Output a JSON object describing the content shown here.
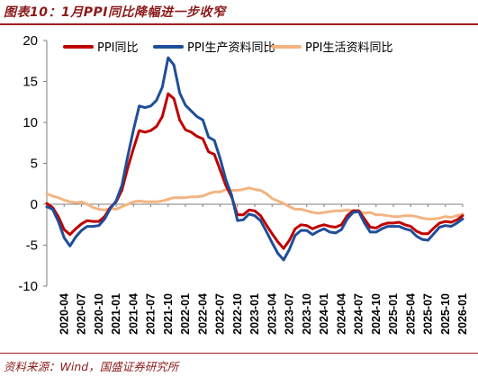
{
  "figure": {
    "title": "图表10：1月PPI同比降幅进一步收窄",
    "source": "资料来源：Wind，国盛证券研究所"
  },
  "chart_data": {
    "type": "line",
    "ylim": [
      -10,
      20
    ],
    "yticks": [
      -10,
      -5,
      0,
      5,
      10,
      15,
      20
    ],
    "grid": false,
    "legend_position": "top",
    "x_tick_labels": [
      "2020-04",
      "2020-07",
      "2020-10",
      "2021-01",
      "2021-04",
      "2021-07",
      "2021-10",
      "2022-01",
      "2022-04",
      "2022-07",
      "2022-10",
      "2023-01",
      "2023-04",
      "2023-07",
      "2023-10",
      "2024-01",
      "2024-04",
      "2024-07",
      "2024-10",
      "2025-01",
      "2025-04",
      "2025-07",
      "2025-10",
      "2026-01"
    ],
    "x": [
      "2020-01",
      "2020-02",
      "2020-03",
      "2020-04",
      "2020-05",
      "2020-06",
      "2020-07",
      "2020-08",
      "2020-09",
      "2020-10",
      "2020-11",
      "2020-12",
      "2021-01",
      "2021-02",
      "2021-03",
      "2021-04",
      "2021-05",
      "2021-06",
      "2021-07",
      "2021-08",
      "2021-09",
      "2021-10",
      "2021-11",
      "2021-12",
      "2022-01",
      "2022-02",
      "2022-03",
      "2022-04",
      "2022-05",
      "2022-06",
      "2022-07",
      "2022-08",
      "2022-09",
      "2022-10",
      "2022-11",
      "2022-12",
      "2023-01",
      "2023-02",
      "2023-03",
      "2023-04",
      "2023-05",
      "2023-06",
      "2023-07",
      "2023-08",
      "2023-09",
      "2023-10",
      "2023-11",
      "2023-12",
      "2024-01",
      "2024-02",
      "2024-03",
      "2024-04",
      "2024-05",
      "2024-06",
      "2024-07",
      "2024-08",
      "2024-09",
      "2024-10",
      "2024-11",
      "2024-12",
      "2025-01",
      "2025-02",
      "2025-03",
      "2025-04",
      "2025-05",
      "2025-06",
      "2025-07",
      "2025-08",
      "2025-09",
      "2025-10",
      "2025-11",
      "2025-12",
      "2026-01"
    ],
    "series": [
      {
        "name": "PPI同比",
        "color": "#c00000",
        "values": [
          0.1,
          -0.4,
          -1.5,
          -3.1,
          -3.7,
          -3.0,
          -2.4,
          -2.0,
          -2.1,
          -2.1,
          -1.5,
          -0.4,
          0.3,
          1.7,
          4.4,
          6.8,
          9.0,
          8.8,
          9.0,
          9.5,
          10.7,
          13.5,
          12.9,
          10.3,
          9.1,
          8.8,
          8.3,
          8.0,
          6.4,
          6.1,
          4.2,
          2.3,
          0.9,
          -1.3,
          -1.3,
          -0.7,
          -0.8,
          -1.4,
          -2.5,
          -3.6,
          -4.6,
          -5.4,
          -4.4,
          -3.0,
          -2.5,
          -2.6,
          -3.0,
          -2.7,
          -2.5,
          -2.7,
          -2.8,
          -2.5,
          -1.4,
          -0.8,
          -0.8,
          -1.8,
          -2.8,
          -2.9,
          -2.5,
          -2.3,
          -2.3,
          -2.2,
          -2.5,
          -2.7,
          -3.3,
          -3.6,
          -3.6,
          -2.9,
          -2.3,
          -2.1,
          -2.2,
          -1.9,
          -1.4
        ]
      },
      {
        "name": "PPI生产资料同比",
        "color": "#1f4e99",
        "values": [
          -0.3,
          -0.6,
          -2.1,
          -4.1,
          -5.1,
          -4.0,
          -3.2,
          -2.7,
          -2.7,
          -2.6,
          -1.8,
          -0.5,
          0.4,
          2.3,
          5.8,
          9.1,
          12.0,
          11.8,
          12.0,
          12.7,
          14.3,
          17.9,
          17.0,
          13.6,
          12.1,
          11.4,
          10.7,
          10.3,
          8.2,
          7.8,
          5.6,
          3.0,
          1.1,
          -2.0,
          -1.9,
          -1.2,
          -1.4,
          -2.0,
          -3.3,
          -4.7,
          -6.0,
          -6.8,
          -5.5,
          -3.8,
          -3.2,
          -3.2,
          -3.7,
          -3.3,
          -3.0,
          -3.4,
          -3.5,
          -3.1,
          -1.8,
          -1.0,
          -0.9,
          -2.3,
          -3.4,
          -3.4,
          -3.0,
          -2.7,
          -2.7,
          -2.7,
          -3.0,
          -3.2,
          -3.9,
          -4.3,
          -4.4,
          -3.6,
          -2.8,
          -2.6,
          -2.7,
          -2.3,
          -1.8
        ]
      },
      {
        "name": "PPI生活资料同比",
        "color": "#f3b481",
        "values": [
          1.3,
          1.0,
          0.8,
          0.5,
          0.3,
          0.2,
          0.3,
          0.0,
          -0.4,
          -0.6,
          -0.7,
          -0.5,
          -0.6,
          -0.3,
          0.0,
          0.3,
          0.4,
          0.3,
          0.3,
          0.3,
          0.4,
          0.6,
          0.8,
          0.8,
          0.8,
          0.9,
          0.9,
          1.0,
          1.3,
          1.5,
          1.5,
          1.8,
          1.7,
          1.7,
          1.8,
          2.0,
          1.8,
          1.7,
          1.3,
          0.7,
          0.4,
          0.1,
          -0.3,
          -0.6,
          -0.6,
          -0.8,
          -1.0,
          -1.1,
          -1.0,
          -0.9,
          -0.8,
          -0.8,
          -0.7,
          -0.8,
          -0.8,
          -1.1,
          -1.0,
          -1.3,
          -1.3,
          -1.4,
          -1.5,
          -1.5,
          -1.4,
          -1.4,
          -1.5,
          -1.7,
          -1.8,
          -1.8,
          -1.7,
          -1.5,
          -1.6,
          -1.4,
          -1.2
        ]
      }
    ]
  }
}
